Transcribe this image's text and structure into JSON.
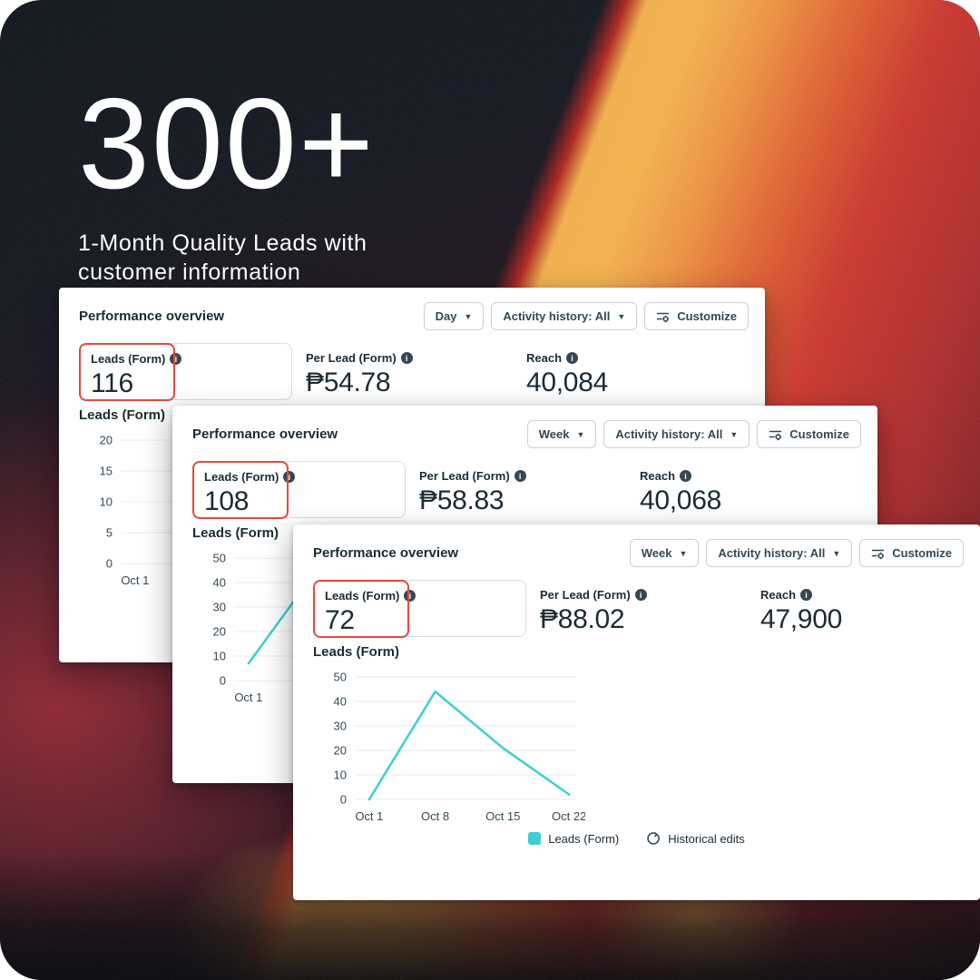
{
  "headline": {
    "title": "300+",
    "subtitle": "1-Month Quality Leads with customer information"
  },
  "colors": {
    "accent_teal": "#3dcfd2",
    "highlight_red": "#e8483c",
    "flame_yellow": "#f6b24b",
    "flame_red": "#cb342b",
    "text_dark": "#1c2b33"
  },
  "cards": [
    {
      "title": "Performance overview",
      "controls": {
        "range_label": "Day",
        "activity_label": "Activity history: All",
        "customize_label": "Customize"
      },
      "metrics": [
        {
          "label": "Leads (Form)",
          "value": "116",
          "highlighted": true
        },
        {
          "label": "Per Lead (Form)",
          "value": "₱54.78"
        },
        {
          "label": "Reach",
          "value": "40,084"
        }
      ],
      "chart": {
        "type": "line",
        "title": "Leads (Form)",
        "y_ticks": [
          20,
          15,
          10,
          5,
          0
        ],
        "row_spacing": 34,
        "x_labels": [
          "Oct 1"
        ],
        "x_positions": [
          0.065
        ],
        "points": [],
        "line_color": "#3dcfd2"
      }
    },
    {
      "title": "Performance overview",
      "controls": {
        "range_label": "Week",
        "activity_label": "Activity history: All",
        "customize_label": "Customize"
      },
      "metrics": [
        {
          "label": "Leads (Form)",
          "value": "108",
          "highlighted": true
        },
        {
          "label": "Per Lead (Form)",
          "value": "₱58.83"
        },
        {
          "label": "Reach",
          "value": "40,068"
        }
      ],
      "chart": {
        "type": "line",
        "title": "Leads (Form)",
        "y_ticks": [
          50,
          40,
          30,
          20,
          10,
          0
        ],
        "row_spacing": 27,
        "x_labels": [
          "Oct 1"
        ],
        "x_positions": [
          0.065
        ],
        "points": [
          [
            0.065,
            7
          ],
          [
            0.363,
            44
          ],
          [
            0.669,
            21
          ],
          [
            0.968,
            2
          ]
        ],
        "line_color": "#3dcfd2"
      }
    },
    {
      "title": "Performance overview",
      "controls": {
        "range_label": "Week",
        "activity_label": "Activity history: All",
        "customize_label": "Customize"
      },
      "metrics": [
        {
          "label": "Leads (Form)",
          "value": "72",
          "highlighted": true
        },
        {
          "label": "Per Lead (Form)",
          "value": "₱88.02"
        },
        {
          "label": "Reach",
          "value": "47,900"
        }
      ],
      "chart": {
        "type": "line",
        "title": "Leads (Form)",
        "y_ticks": [
          50,
          40,
          30,
          20,
          10,
          0
        ],
        "row_spacing": 27,
        "x_labels": [
          "Oct 1",
          "Oct 8",
          "Oct 15",
          "Oct 22"
        ],
        "x_positions": [
          0.065,
          0.363,
          0.669,
          0.968
        ],
        "points": [
          [
            0.065,
            0
          ],
          [
            0.363,
            44
          ],
          [
            0.669,
            21
          ],
          [
            0.968,
            2
          ]
        ],
        "line_color": "#3dcfd2"
      },
      "legend": [
        {
          "label": "Leads (Form)"
        },
        {
          "label": "Historical edits"
        }
      ]
    }
  ]
}
